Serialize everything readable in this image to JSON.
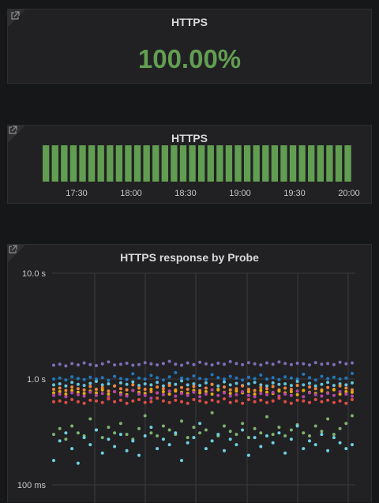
{
  "panels": [
    {
      "title": "HTTPS",
      "value": "100.00%",
      "value_color": "#629e51"
    },
    {
      "title": "HTTPS",
      "bar_color": "#629e51",
      "bar_count": 34,
      "x_ticks": [
        "17:30",
        "18:00",
        "18:30",
        "19:00",
        "19:30",
        "20:00"
      ]
    },
    {
      "title": "HTTPS response by Probe",
      "y_ticks": [
        "10.0 s",
        "1.0 s",
        "100 ms"
      ]
    }
  ],
  "chart_data": [
    {
      "type": "bar",
      "title": "HTTPS",
      "x_ticks": [
        "17:30",
        "18:00",
        "18:30",
        "19:00",
        "19:30",
        "20:00"
      ],
      "values": [
        1,
        1,
        1,
        1,
        1,
        1,
        1,
        1,
        1,
        1,
        1,
        1,
        1,
        1,
        1,
        1,
        1,
        1,
        1,
        1,
        1,
        1,
        1,
        1,
        1,
        1,
        1,
        1,
        1,
        1,
        1,
        1,
        1,
        1
      ],
      "color": "#629e51"
    },
    {
      "type": "scatter",
      "title": "HTTPS response by Probe",
      "y_scale": "log",
      "ylim": [
        0.1,
        10
      ],
      "y_ticks": [
        "10.0 s",
        "1.0 s",
        "100 ms"
      ],
      "grid": true,
      "point_count": 50,
      "series": [
        {
          "color": "#806eb7",
          "values": [
            1.35,
            1.38,
            1.33,
            1.4,
            1.36,
            1.42,
            1.37,
            1.34,
            1.39,
            1.45,
            1.36,
            1.38,
            1.41,
            1.35,
            1.37,
            1.43,
            1.39,
            1.36,
            1.4,
            1.47,
            1.38,
            1.35,
            1.42,
            1.37,
            1.44,
            1.39,
            1.36,
            1.41,
            1.38,
            1.46,
            1.4,
            1.37,
            1.43,
            1.39,
            1.36,
            1.42,
            1.38,
            1.45,
            1.4,
            1.37,
            1.41,
            1.39,
            1.36,
            1.43,
            1.38,
            1.4,
            1.37,
            1.44,
            1.39,
            1.42
          ]
        },
        {
          "color": "#1f78c1",
          "values": [
            1.0,
            1.02,
            0.98,
            1.05,
            1.01,
            0.99,
            1.04,
            1.0,
            1.03,
            0.97,
            1.06,
            1.01,
            0.99,
            1.12,
            1.02,
            1.0,
            1.08,
            1.03,
            0.98,
            1.05,
            1.15,
            1.02,
            1.0,
            1.07,
            1.01,
            0.99,
            1.1,
            1.03,
            1.0,
            1.06,
            1.02,
            0.98,
            1.04,
            1.01,
            1.09,
            1.0,
            1.03,
            0.99,
            1.05,
            1.02,
            1.0,
            1.11,
            1.03,
            0.98,
            1.06,
            1.01,
            1.04,
            1.0,
            1.02,
            1.13
          ]
        },
        {
          "color": "#65c5db",
          "values": [
            0.88,
            0.9,
            0.86,
            0.93,
            0.89,
            0.87,
            0.91,
            0.95,
            0.88,
            0.9,
            0.86,
            0.92,
            0.89,
            0.94,
            0.87,
            0.9,
            0.88,
            0.93,
            0.86,
            0.91,
            0.89,
            0.96,
            0.88,
            0.9,
            0.87,
            0.92,
            0.89,
            0.86,
            0.94,
            0.88,
            0.91,
            0.87,
            0.9,
            0.93,
            0.88,
            0.86,
            0.92,
            0.89,
            0.9,
            0.87,
            0.95,
            0.88,
            0.91,
            0.86,
            0.89,
            0.93,
            0.87,
            0.9,
            0.88,
            0.92
          ]
        },
        {
          "color": "#ef843c",
          "values": [
            0.8,
            0.82,
            0.78,
            0.84,
            0.81,
            0.79,
            0.85,
            0.8,
            0.83,
            0.77,
            0.86,
            0.81,
            0.79,
            0.88,
            0.82,
            0.8,
            0.76,
            0.84,
            0.81,
            0.87,
            0.79,
            0.83,
            0.8,
            0.85,
            0.78,
            0.82,
            0.89,
            0.8,
            0.84,
            0.79,
            0.81,
            0.86,
            0.8,
            0.78,
            0.83,
            0.81,
            0.85,
            0.79,
            0.82,
            0.8,
            0.87,
            0.78,
            0.84,
            0.81,
            0.79,
            0.83,
            0.8,
            0.86,
            0.82,
            0.79
          ]
        },
        {
          "color": "#e5ac0e",
          "values": [
            0.74,
            0.76,
            0.72,
            0.78,
            0.75,
            0.73,
            0.77,
            0.74,
            0.79,
            0.72,
            0.76,
            0.74,
            0.71,
            0.78,
            0.75,
            0.73,
            0.8,
            0.74,
            0.76,
            0.72,
            0.77,
            0.75,
            0.73,
            0.78,
            0.74,
            0.76,
            0.72,
            0.79,
            0.75,
            0.73,
            0.77,
            0.74,
            0.76,
            0.72,
            0.78,
            0.75,
            0.73,
            0.77,
            0.74,
            0.76,
            0.71,
            0.78,
            0.75,
            0.73,
            0.77,
            0.74,
            0.79,
            0.72,
            0.76,
            0.75
          ]
        },
        {
          "color": "#ba43a9",
          "values": [
            0.7,
            0.72,
            0.68,
            0.74,
            0.71,
            0.69,
            0.75,
            0.7,
            0.73,
            0.67,
            0.76,
            0.71,
            0.69,
            0.78,
            0.72,
            0.7,
            0.66,
            0.74,
            0.71,
            0.77,
            0.69,
            0.73,
            0.7,
            0.75,
            0.68,
            0.72,
            0.79,
            0.7,
            0.74,
            0.69,
            0.71,
            0.76,
            0.7,
            0.68,
            0.73,
            0.71,
            0.75,
            0.69,
            0.72,
            0.7,
            0.77,
            0.68,
            0.74,
            0.71,
            0.69,
            0.73,
            0.7,
            0.76,
            0.72,
            0.69
          ]
        },
        {
          "color": "#e24d42",
          "values": [
            0.61,
            0.62,
            0.6,
            0.64,
            0.61,
            0.59,
            0.63,
            0.62,
            0.6,
            0.65,
            0.61,
            0.63,
            0.59,
            0.62,
            0.64,
            0.6,
            0.61,
            0.66,
            0.62,
            0.6,
            0.63,
            0.61,
            0.59,
            0.64,
            0.62,
            0.6,
            0.63,
            0.61,
            0.65,
            0.6,
            0.62,
            0.59,
            0.64,
            0.61,
            0.63,
            0.6,
            0.62,
            0.66,
            0.61,
            0.59,
            0.63,
            0.62,
            0.6,
            0.64,
            0.61,
            0.63,
            0.6,
            0.62,
            0.59,
            0.64
          ]
        },
        {
          "color": "#7eb26d",
          "values": [
            0.3,
            0.34,
            0.27,
            0.36,
            0.31,
            0.29,
            0.42,
            0.33,
            0.28,
            0.35,
            0.31,
            0.38,
            0.3,
            0.27,
            0.34,
            0.45,
            0.31,
            0.29,
            0.36,
            0.33,
            0.3,
            0.4,
            0.28,
            0.35,
            0.31,
            0.33,
            0.48,
            0.29,
            0.36,
            0.32,
            0.3,
            0.38,
            0.28,
            0.34,
            0.31,
            0.44,
            0.3,
            0.35,
            0.29,
            0.33,
            0.37,
            0.31,
            0.29,
            0.36,
            0.32,
            0.42,
            0.3,
            0.34,
            0.38,
            0.45
          ]
        },
        {
          "color": "#6ed0e0",
          "values": [
            0.17,
            0.26,
            0.31,
            0.22,
            0.16,
            0.28,
            0.24,
            0.33,
            0.2,
            0.27,
            0.23,
            0.3,
            0.21,
            0.26,
            0.19,
            0.29,
            0.35,
            0.22,
            0.27,
            0.24,
            0.31,
            0.17,
            0.25,
            0.28,
            0.38,
            0.22,
            0.26,
            0.3,
            0.21,
            0.27,
            0.24,
            0.33,
            0.19,
            0.28,
            0.23,
            0.29,
            0.25,
            0.31,
            0.2,
            0.27,
            0.36,
            0.22,
            0.26,
            0.24,
            0.3,
            0.21,
            0.28,
            0.25,
            0.22,
            0.24
          ]
        }
      ]
    }
  ]
}
